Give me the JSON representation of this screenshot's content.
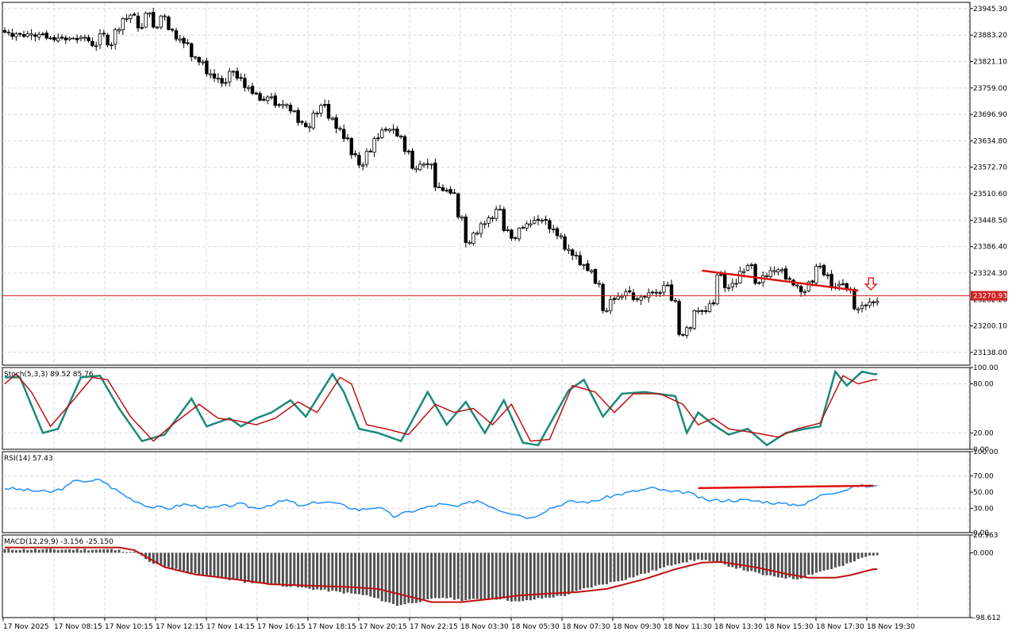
{
  "chart_data": [
    {
      "type": "candlestick",
      "panel": "price",
      "ylim": [
        23108,
        23960
      ],
      "y_ticks": [
        {
          "value": 23945.3,
          "label": "23945.30"
        },
        {
          "value": 23883.2,
          "label": "23883.20"
        },
        {
          "value": 23821.1,
          "label": "23821.10"
        },
        {
          "value": 23759.0,
          "label": "23759.00"
        },
        {
          "value": 23696.9,
          "label": "23696.90"
        },
        {
          "value": 23634.8,
          "label": "23634.80"
        },
        {
          "value": 23572.7,
          "label": "23572.70"
        },
        {
          "value": 23510.6,
          "label": "23510.60"
        },
        {
          "value": 23448.5,
          "label": "23448.50"
        },
        {
          "value": 23386.4,
          "label": "23386.40"
        },
        {
          "value": 23324.3,
          "label": "23324.30"
        },
        {
          "value": 23262.2,
          "label": "23262.20"
        },
        {
          "value": 23200.1,
          "label": "23200.10"
        },
        {
          "value": 23138.0,
          "label": "23138.00"
        }
      ],
      "current_price": 23270.93,
      "current_price_label": "23270.93",
      "trendline": {
        "color": "#e01010",
        "from": {
          "bar": 183,
          "price": 23330
        },
        "to": {
          "bar": 224,
          "price": 23283
        }
      },
      "signal_arrow": {
        "direction": "down",
        "color": "#e01010",
        "bar": 229,
        "price": 23298
      },
      "grid": true
    },
    {
      "type": "line",
      "panel": "stochastic",
      "label": "Stoch(5,3,3) 89.52 85.76",
      "ylim": [
        0,
        100
      ],
      "y_ticks": [
        {
          "value": 100,
          "label": "100.00"
        },
        {
          "value": 80,
          "label": "80.00"
        },
        {
          "value": 20,
          "label": "20.00"
        },
        {
          "value": 0,
          "label": "0.00"
        }
      ],
      "levels": [
        80,
        20
      ],
      "series_colors": {
        "main": "#1a8a7a",
        "signal": "#c01010"
      },
      "main_anchors": [
        [
          0,
          88
        ],
        [
          4,
          88
        ],
        [
          10,
          20
        ],
        [
          14,
          25
        ],
        [
          20,
          88
        ],
        [
          25,
          90
        ],
        [
          30,
          50
        ],
        [
          36,
          10
        ],
        [
          42,
          18
        ],
        [
          49,
          62
        ],
        [
          53,
          28
        ],
        [
          59,
          38
        ],
        [
          62,
          28
        ],
        [
          66,
          38
        ],
        [
          70,
          45
        ],
        [
          75,
          60
        ],
        [
          79,
          40
        ],
        [
          86,
          92
        ],
        [
          89,
          70
        ],
        [
          93,
          25
        ],
        [
          98,
          20
        ],
        [
          104,
          10
        ],
        [
          111,
          70
        ],
        [
          116,
          30
        ],
        [
          121,
          58
        ],
        [
          126,
          20
        ],
        [
          131,
          60
        ],
        [
          136,
          8
        ],
        [
          140,
          5
        ],
        [
          148,
          72
        ],
        [
          152,
          85
        ],
        [
          157,
          40
        ],
        [
          162,
          68
        ],
        [
          168,
          70
        ],
        [
          176,
          65
        ],
        [
          179,
          20
        ],
        [
          182,
          45
        ],
        [
          186,
          30
        ],
        [
          190,
          18
        ],
        [
          195,
          25
        ],
        [
          200,
          5
        ],
        [
          205,
          20
        ],
        [
          210,
          25
        ],
        [
          214,
          28
        ],
        [
          218,
          95
        ],
        [
          221,
          78
        ],
        [
          225,
          95
        ],
        [
          228,
          92
        ]
      ],
      "signal_anchors": [
        [
          0,
          80
        ],
        [
          3,
          92
        ],
        [
          7,
          70
        ],
        [
          12,
          28
        ],
        [
          18,
          60
        ],
        [
          23,
          88
        ],
        [
          27,
          85
        ],
        [
          33,
          40
        ],
        [
          39,
          10
        ],
        [
          44,
          30
        ],
        [
          51,
          55
        ],
        [
          56,
          38
        ],
        [
          61,
          35
        ],
        [
          66,
          30
        ],
        [
          71,
          38
        ],
        [
          77,
          58
        ],
        [
          82,
          45
        ],
        [
          88,
          88
        ],
        [
          91,
          80
        ],
        [
          95,
          30
        ],
        [
          100,
          25
        ],
        [
          106,
          18
        ],
        [
          113,
          55
        ],
        [
          118,
          45
        ],
        [
          123,
          50
        ],
        [
          128,
          30
        ],
        [
          133,
          55
        ],
        [
          138,
          10
        ],
        [
          143,
          12
        ],
        [
          149,
          78
        ],
        [
          155,
          70
        ],
        [
          160,
          45
        ],
        [
          165,
          68
        ],
        [
          172,
          68
        ],
        [
          178,
          55
        ],
        [
          182,
          30
        ],
        [
          186,
          38
        ],
        [
          190,
          25
        ],
        [
          197,
          20
        ],
        [
          203,
          15
        ],
        [
          208,
          25
        ],
        [
          214,
          32
        ],
        [
          220,
          90
        ],
        [
          224,
          80
        ],
        [
          228,
          85
        ]
      ]
    },
    {
      "type": "line",
      "panel": "rsi",
      "label": "RSI(14) 57.43",
      "ylim": [
        0,
        100
      ],
      "y_ticks": [
        {
          "value": 100,
          "label": "100.00"
        },
        {
          "value": 70,
          "label": "70.00"
        },
        {
          "value": 50,
          "label": "50.00"
        },
        {
          "value": 30,
          "label": "30.00"
        },
        {
          "value": 0,
          "label": "0.00"
        }
      ],
      "levels": [
        70,
        30
      ],
      "series_colors": {
        "rsi": "#1e90ff"
      },
      "trendline": {
        "color": "#e01010",
        "from": {
          "bar": 182,
          "value": 55
        },
        "to": {
          "bar": 228,
          "value": 58
        }
      },
      "anchors": [
        [
          0,
          55
        ],
        [
          7,
          52
        ],
        [
          12,
          50
        ],
        [
          16,
          56
        ],
        [
          19,
          66
        ],
        [
          22,
          62
        ],
        [
          25,
          66
        ],
        [
          28,
          56
        ],
        [
          33,
          42
        ],
        [
          38,
          32
        ],
        [
          43,
          30
        ],
        [
          47,
          35
        ],
        [
          54,
          30
        ],
        [
          58,
          33
        ],
        [
          62,
          35
        ],
        [
          66,
          30
        ],
        [
          70,
          35
        ],
        [
          74,
          40
        ],
        [
          78,
          32
        ],
        [
          82,
          38
        ],
        [
          86,
          37
        ],
        [
          93,
          28
        ],
        [
          98,
          32
        ],
        [
          102,
          20
        ],
        [
          108,
          28
        ],
        [
          114,
          35
        ],
        [
          119,
          32
        ],
        [
          124,
          40
        ],
        [
          130,
          28
        ],
        [
          135,
          22
        ],
        [
          138,
          18
        ],
        [
          143,
          30
        ],
        [
          148,
          38
        ],
        [
          154,
          38
        ],
        [
          159,
          45
        ],
        [
          164,
          50
        ],
        [
          170,
          55
        ],
        [
          175,
          50
        ],
        [
          179,
          50
        ],
        [
          184,
          40
        ],
        [
          190,
          40
        ],
        [
          195,
          40
        ],
        [
          200,
          38
        ],
        [
          205,
          35
        ],
        [
          210,
          35
        ],
        [
          215,
          48
        ],
        [
          220,
          52
        ],
        [
          224,
          58
        ],
        [
          228,
          57
        ]
      ]
    },
    {
      "type": "bar",
      "panel": "macd",
      "label": "MACD(12,29,9) -3.156 -25.150",
      "ylim": [
        -98.612,
        26.963
      ],
      "y_ticks": [
        {
          "value": 26.963,
          "label": "26.963"
        },
        {
          "value": 0,
          "label": "0.000"
        },
        {
          "value": -98.612,
          "label": "-98.612"
        }
      ],
      "series_colors": {
        "histogram": "#505050",
        "signal": "#c01010"
      },
      "histogram_anchors": [
        [
          0,
          5
        ],
        [
          28,
          5
        ],
        [
          35,
          0
        ],
        [
          38,
          -15
        ],
        [
          48,
          -30
        ],
        [
          58,
          -40
        ],
        [
          64,
          -45
        ],
        [
          70,
          -48
        ],
        [
          76,
          -52
        ],
        [
          85,
          -58
        ],
        [
          95,
          -65
        ],
        [
          103,
          -80
        ],
        [
          108,
          -75
        ],
        [
          115,
          -68
        ],
        [
          120,
          -72
        ],
        [
          130,
          -70
        ],
        [
          135,
          -75
        ],
        [
          140,
          -70
        ],
        [
          147,
          -65
        ],
        [
          152,
          -55
        ],
        [
          157,
          -48
        ],
        [
          163,
          -40
        ],
        [
          170,
          -28
        ],
        [
          177,
          -15
        ],
        [
          183,
          -10
        ],
        [
          190,
          -20
        ],
        [
          200,
          -35
        ],
        [
          208,
          -40
        ],
        [
          213,
          -30
        ],
        [
          220,
          -20
        ],
        [
          225,
          -8
        ],
        [
          228,
          -3
        ]
      ],
      "signal_anchors": [
        [
          0,
          8
        ],
        [
          30,
          8
        ],
        [
          34,
          4
        ],
        [
          42,
          -22
        ],
        [
          50,
          -33
        ],
        [
          60,
          -40
        ],
        [
          70,
          -48
        ],
        [
          80,
          -50
        ],
        [
          90,
          -52
        ],
        [
          98,
          -55
        ],
        [
          105,
          -65
        ],
        [
          112,
          -75
        ],
        [
          120,
          -75
        ],
        [
          128,
          -70
        ],
        [
          135,
          -65
        ],
        [
          143,
          -62
        ],
        [
          150,
          -60
        ],
        [
          158,
          -55
        ],
        [
          168,
          -40
        ],
        [
          176,
          -25
        ],
        [
          183,
          -15
        ],
        [
          188,
          -14
        ],
        [
          197,
          -22
        ],
        [
          205,
          -32
        ],
        [
          211,
          -38
        ],
        [
          218,
          -38
        ],
        [
          222,
          -34
        ],
        [
          228,
          -25
        ]
      ]
    }
  ],
  "price_bars": "23890,23890,23880,23886,23886,23880,23886,23886,23880,23885,23885,23876,23876,23872,23876,23876,23872,23876,23876,23872,23878,23878,23870,23858,23858,23886,23886,23860,23860,23896,23896,23922,23922,23930,23930,23900,23900,23935,23935,23902,23902,23928,23928,23896,23896,23874,23874,23864,23864,23832,23832,23820,23820,23792,23792,23782,23782,23770,23770,23798,23798,23782,23782,23760,23760,23746,23746,23730,23730,23738,23738,23718,23718,23720,23720,23705,23705,23678,23678,23668,23668,23700,23700,23718,23718,23688,23688,23664,23664,23640,23640,23602,23602,23578,23578,23610,23610,23640,23640,23660,23660,23662,23662,23646,23646,23610,23610,23570,23570,23580,23580,23580,23580,23526,23526,23518,23518,23512,23512,23456,23456,23396,23396,23418,23418,23440,23440,23454,23454,23474,23474,23424,23424,23406,23406,23430,23430,23440,23440,23448,23448,23448,23448,23428,23428,23412,23412,23380,23380,23366,23366,23344,23344,23330,23330,23300,23300,23236,23236,23262,23262,23270,23270,23280,23280,23262,23262,23268,23268,23278,23278,23278,23278,23295,23295,23260,23260,23180,23180,23196,23196,23236,23236,23234,23234,23252,23252,23320,23320,23290,23290,23300,23300,23328,23328,23342,23342,23300,23300,23318,23318,23330,23330,23332,23332,23310,23310,23296,23296,23280,23280,23303,23303,23340,23340,23320,23320,23292,23292,23298,23298,23286,23286,23240,23240,23248,23248,23256,23256,23258,23258,23236,23236,23226,23226,23210,23210,23200,23200,23188,23188,23216,23216,23164,23164,23138,23138,23156,23156,23136,23136,23142,23142,23180,23180,23206,23206,23214,23214,23184,23184,23224,23224,23266,23266,23271"
}
